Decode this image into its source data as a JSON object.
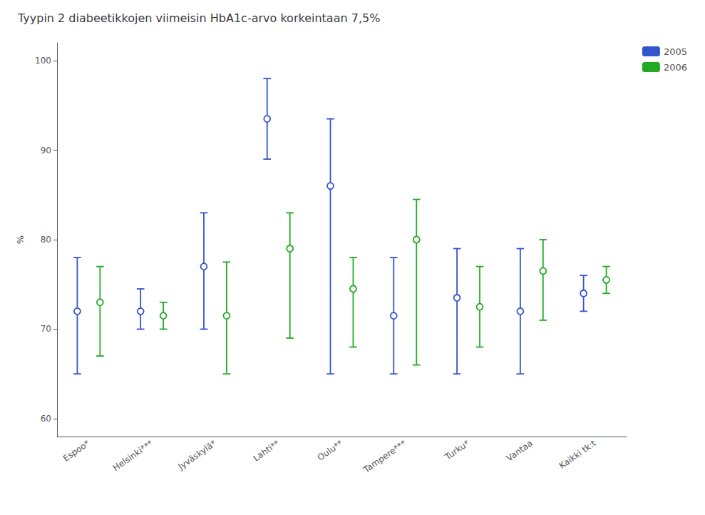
{
  "chart_data": {
    "type": "errorbar",
    "title": "Tyypin 2 diabeetikkojen viimeisin HbA1c-arvo korkeintaan 7,5%",
    "ylabel": "%",
    "categories": [
      "Espoo*",
      "Helsinki***",
      "Jyväskylä*",
      "Lahti**",
      "Oulu**",
      "Tampere***",
      "Turku*",
      "Vantaa",
      "Kaikki tk:t"
    ],
    "series": [
      {
        "name": "2005",
        "color": "#3355cc",
        "values": [
          72,
          72,
          77,
          93.5,
          86,
          71.5,
          73.5,
          72,
          74
        ],
        "lower": [
          65,
          70,
          70,
          89,
          65,
          65,
          65,
          65,
          72
        ],
        "upper": [
          78,
          74.5,
          83,
          98,
          93.5,
          78,
          79,
          79,
          76
        ]
      },
      {
        "name": "2006",
        "color": "#22aa22",
        "values": [
          73,
          71.5,
          71.5,
          79,
          74.5,
          80,
          72.5,
          76.5,
          75.5
        ],
        "lower": [
          67,
          70,
          65,
          69,
          68,
          66,
          68,
          71,
          74
        ],
        "upper": [
          77,
          73,
          77.5,
          83,
          78,
          84.5,
          77,
          80,
          77
        ]
      }
    ],
    "ylim": [
      58,
      102
    ],
    "yticks": [
      60,
      70,
      80,
      90,
      100
    ],
    "grid": false,
    "legend": "right"
  }
}
